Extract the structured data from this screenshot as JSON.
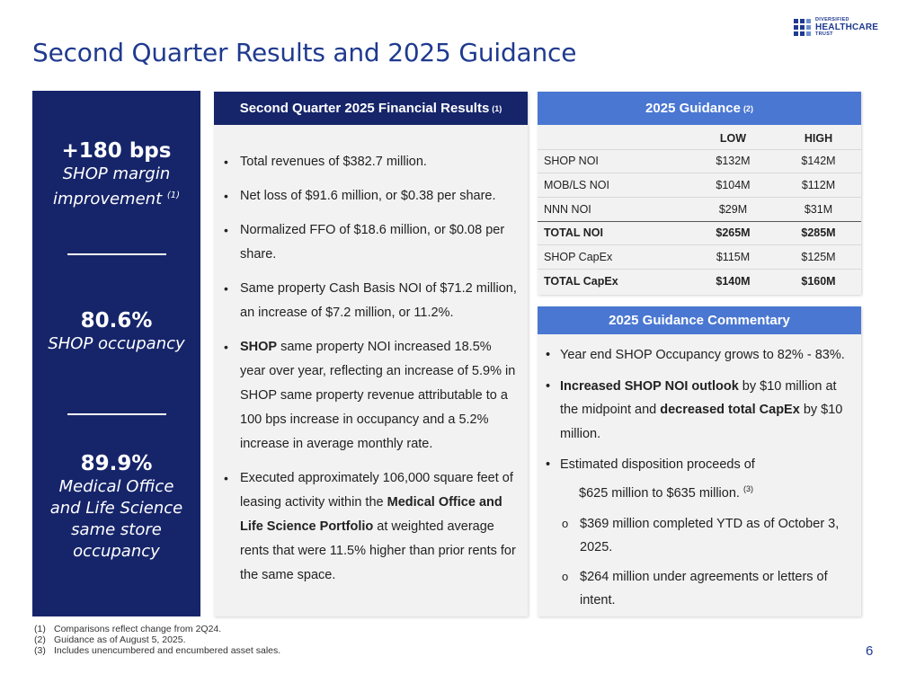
{
  "title": "Second Quarter Results and 2025 Guidance",
  "logo": {
    "line1": "DIVERSIFIED",
    "line2": "HEALTHCARE",
    "line3": "TRUST"
  },
  "kpis": [
    {
      "value": "+180 bps",
      "desc": "SHOP margin improvement",
      "note": "(1)"
    },
    {
      "value": "80.6%",
      "desc": "SHOP occupancy",
      "note": ""
    },
    {
      "value": "89.9%",
      "desc": "Medical Office and Life Science same store occupancy",
      "note": ""
    }
  ],
  "results": {
    "header": "Second Quarter 2025 Financial Results",
    "header_note": "(1)",
    "bullets": [
      {
        "plain": "Total revenues of $382.7 million."
      },
      {
        "plain": "Net loss of $91.6 million, or $0.38 per share."
      },
      {
        "plain": "Normalized FFO of $18.6 million, or $0.08 per share."
      },
      {
        "plain": "Same property Cash Basis NOI of $71.2 million, an increase of $7.2 million, or 11.2%."
      },
      {
        "bold": "SHOP",
        "rest": " same property NOI increased 18.5% year over year, reflecting an increase of 5.9% in SHOP same property revenue attributable to a 100 bps increase in occupancy and a 5.2% increase in average monthly rate."
      },
      {
        "pre": "Executed approximately 106,000 square feet of leasing activity within the ",
        "bold": "Medical Office and Life Science Portfolio",
        "rest": " at weighted average rents that were 11.5% higher than prior rents for the same space."
      }
    ]
  },
  "guidance": {
    "header": "2025 Guidance",
    "header_note": "(2)",
    "col_low": "LOW",
    "col_high": "HIGH",
    "rows": [
      {
        "name": "SHOP NOI",
        "low": "$132M",
        "high": "$142M"
      },
      {
        "name": "MOB/LS NOI",
        "low": "$104M",
        "high": "$112M"
      },
      {
        "name": "NNN NOI",
        "low": "$29M",
        "high": "$31M"
      },
      {
        "name": "TOTAL NOI",
        "low": "$265M",
        "high": "$285M"
      },
      {
        "name": "SHOP CapEx",
        "low": "$115M",
        "high": "$125M"
      },
      {
        "name": "TOTAL CapEx",
        "low": "$140M",
        "high": "$160M"
      }
    ]
  },
  "commentary": {
    "header": "2025 Guidance Commentary",
    "b1": "Year end SHOP Occupancy grows to 82% - 83%.",
    "b2_bold1": "Increased SHOP NOI outlook",
    "b2_mid": " by $10 million at the midpoint and ",
    "b2_bold2": "decreased total CapEx",
    "b2_end": " by $10 million.",
    "b3_line1": "Estimated disposition proceeds of",
    "b3_line2": "$625 million to $635 million.",
    "b3_note": "(3)",
    "sub1": "$369 million completed YTD as of October 3, 2025.",
    "sub2": "$264 million under agreements or letters of intent."
  },
  "footnotes": [
    {
      "key": "(1)",
      "text": "Comparisons reflect change from 2Q24."
    },
    {
      "key": "(2)",
      "text": "Guidance as of August 5, 2025."
    },
    {
      "key": "(3)",
      "text": "Includes unencumbered and encumbered asset sales."
    }
  ],
  "page_number": "6"
}
